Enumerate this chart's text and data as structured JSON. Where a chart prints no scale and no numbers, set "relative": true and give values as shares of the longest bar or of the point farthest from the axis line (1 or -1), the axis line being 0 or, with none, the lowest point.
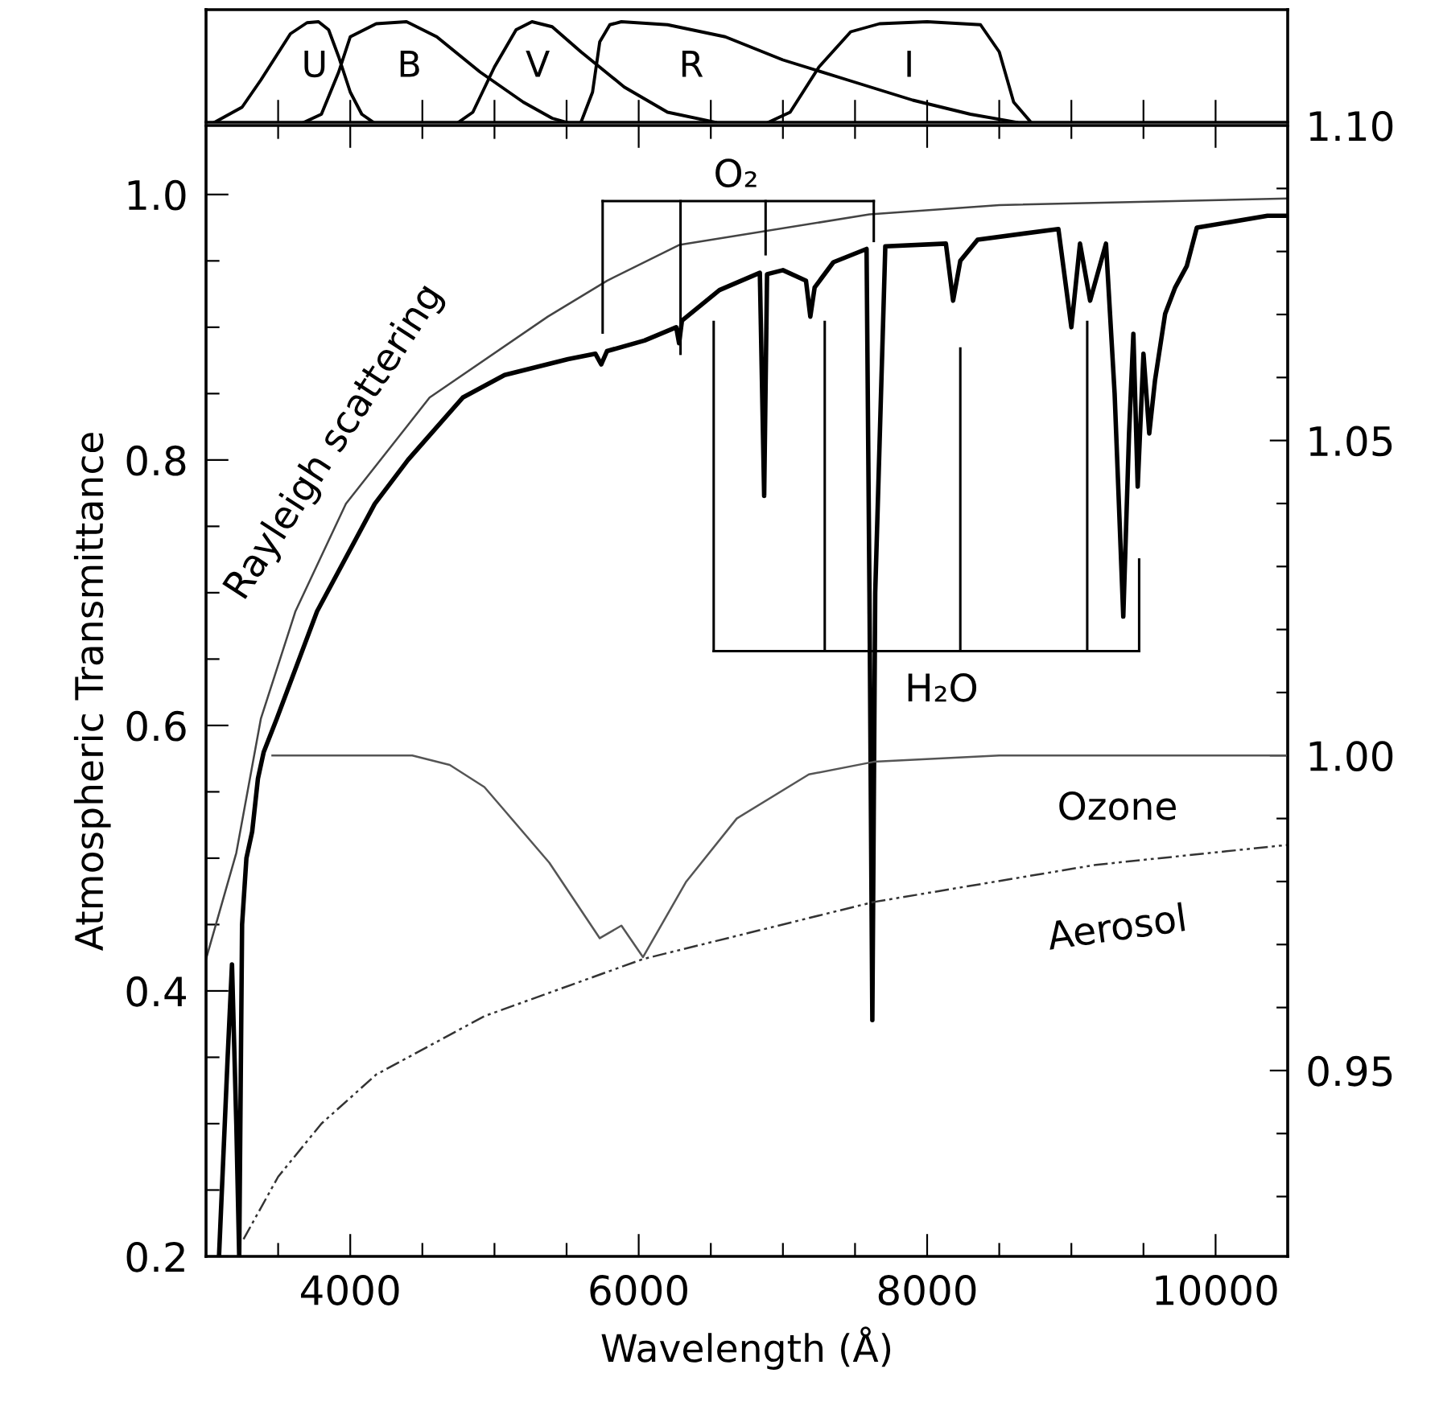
{
  "chart_data": [
    {
      "type": "line",
      "relative": true,
      "tick_labels": false,
      "xlim": [
        3000,
        10500
      ],
      "xticks": [
        {
          "value": 3500,
          "label": null
        },
        4000,
        {
          "value": 4500,
          "label": null
        },
        {
          "value": 5000,
          "label": null
        },
        {
          "value": 5500,
          "label": null
        },
        6000,
        {
          "value": 6500,
          "label": null
        },
        {
          "value": 7000,
          "label": null
        },
        {
          "value": 7500,
          "label": null
        },
        8000,
        {
          "value": 8500,
          "label": null
        },
        {
          "value": 9000,
          "label": null
        },
        {
          "value": 9500,
          "label": null
        },
        10000
      ],
      "series": [
        {
          "name": "U",
          "color": "#000000",
          "x": [
            3060,
            3250,
            3380,
            3585,
            3700,
            3780,
            3850,
            3920,
            4000,
            4080,
            4160
          ],
          "values": [
            0,
            0.15,
            0.42,
            0.88,
            0.99,
            1.0,
            0.92,
            0.65,
            0.3,
            0.08,
            0
          ]
        },
        {
          "name": "B",
          "color": "#000000",
          "x": [
            3680,
            3800,
            3920,
            4000,
            4180,
            4390,
            4600,
            4900,
            5200,
            5400,
            5500
          ],
          "values": [
            0,
            0.08,
            0.5,
            0.85,
            0.98,
            1.0,
            0.85,
            0.5,
            0.2,
            0.04,
            0
          ]
        },
        {
          "name": "V",
          "color": "#000000",
          "x": [
            4750,
            4850,
            5000,
            5150,
            5260,
            5400,
            5600,
            5900,
            6200,
            6530
          ],
          "values": [
            0,
            0.1,
            0.55,
            0.92,
            1.0,
            0.95,
            0.7,
            0.35,
            0.1,
            0
          ]
        },
        {
          "name": "R",
          "color": "#000000",
          "x": [
            5600,
            5680,
            5730,
            5800,
            5880,
            6200,
            6600,
            7000,
            7450,
            7900,
            8300,
            8620
          ],
          "values": [
            0,
            0.3,
            0.8,
            0.97,
            1.0,
            0.97,
            0.85,
            0.62,
            0.42,
            0.22,
            0.08,
            0
          ]
        },
        {
          "name": "I",
          "color": "#000000",
          "x": [
            6900,
            7050,
            7250,
            7470,
            7670,
            8000,
            8370,
            8500,
            8600,
            8720
          ],
          "values": [
            0,
            0.1,
            0.55,
            0.9,
            0.98,
            1.0,
            0.97,
            0.7,
            0.2,
            0
          ]
        }
      ]
    },
    {
      "type": "line",
      "xlabel": "Wavelength (Å)",
      "ylabel": "Atmospheric Transmittance",
      "legend": false,
      "grid": false,
      "xlim": [
        3000,
        10500
      ],
      "ylim": [
        0.2,
        1.052
      ],
      "y2lim": [
        0.9205,
        1.1
      ],
      "xticks": [
        {
          "value": 3500,
          "label": null
        },
        4000,
        {
          "value": 4500,
          "label": null
        },
        {
          "value": 5000,
          "label": null
        },
        {
          "value": 5500,
          "label": null
        },
        6000,
        {
          "value": 6500,
          "label": null
        },
        {
          "value": 7000,
          "label": null
        },
        {
          "value": 7500,
          "label": null
        },
        8000,
        {
          "value": 8500,
          "label": null
        },
        {
          "value": 9000,
          "label": null
        },
        {
          "value": 9500,
          "label": null
        },
        10000
      ],
      "yticks": [
        0.2,
        {
          "value": 0.25,
          "label": null
        },
        {
          "value": 0.3,
          "label": null
        },
        {
          "value": 0.35,
          "label": null
        },
        0.4,
        {
          "value": 0.45,
          "label": null
        },
        {
          "value": 0.5,
          "label": null
        },
        {
          "value": 0.55,
          "label": null
        },
        0.6,
        {
          "value": 0.65,
          "label": null
        },
        {
          "value": 0.7,
          "label": null
        },
        {
          "value": 0.75,
          "label": null
        },
        0.8,
        {
          "value": 0.85,
          "label": null
        },
        {
          "value": 0.9,
          "label": null
        },
        {
          "value": 0.95,
          "label": null
        },
        {
          "value": 1.0,
          "label": "1.0"
        }
      ],
      "y2ticks": [
        {
          "value": 0.93,
          "label": null
        },
        {
          "value": 0.94,
          "label": null
        },
        0.95,
        {
          "value": 0.96,
          "label": null
        },
        {
          "value": 0.97,
          "label": null
        },
        {
          "value": 0.98,
          "label": null
        },
        {
          "value": 0.99,
          "label": null
        },
        {
          "value": 1.0,
          "label": "1.00"
        },
        {
          "value": 1.01,
          "label": null
        },
        {
          "value": 1.02,
          "label": null
        },
        {
          "value": 1.03,
          "label": null
        },
        {
          "value": 1.04,
          "label": null
        },
        1.05,
        {
          "value": 1.06,
          "label": null
        },
        {
          "value": 1.07,
          "label": null
        },
        {
          "value": 1.08,
          "label": null
        },
        {
          "value": 1.09,
          "label": null
        },
        {
          "value": 1.1,
          "label": "1.10"
        }
      ],
      "series": [
        {
          "color": "#000000",
          "line_style": "solid",
          "x": [
            3090,
            3150,
            3180,
            3210,
            3230,
            3250,
            3280,
            3320,
            3360,
            3400,
            3490,
            3770,
            4170,
            4400,
            4780,
            5070,
            5510,
            5700,
            5740,
            5780,
            6040,
            6260,
            6280,
            6300,
            6560,
            6840,
            6870,
            6890,
            7000,
            7160,
            7190,
            7220,
            7350,
            7580,
            7600,
            7620,
            7640,
            7710,
            8130,
            8180,
            8230,
            8350,
            8910,
            9000,
            9060,
            9130,
            9240,
            9300,
            9360,
            9400,
            9430,
            9460,
            9500,
            9540,
            9580,
            9650,
            9720,
            9800,
            9870,
            10360,
            10500
          ],
          "values": [
            0.2,
            0.35,
            0.42,
            0.3,
            0.2,
            0.45,
            0.5,
            0.52,
            0.56,
            0.58,
            0.605,
            0.686,
            0.767,
            0.8,
            0.847,
            0.864,
            0.876,
            0.88,
            0.872,
            0.882,
            0.89,
            0.9,
            0.888,
            0.905,
            0.928,
            0.941,
            0.773,
            0.94,
            0.943,
            0.935,
            0.908,
            0.93,
            0.949,
            0.959,
            0.7,
            0.378,
            0.7,
            0.961,
            0.963,
            0.92,
            0.95,
            0.966,
            0.974,
            0.9,
            0.963,
            0.92,
            0.963,
            0.85,
            0.682,
            0.82,
            0.895,
            0.78,
            0.88,
            0.82,
            0.86,
            0.91,
            0.93,
            0.946,
            0.975,
            0.984,
            0.984
          ]
        },
        {
          "name": "Rayleigh scattering",
          "color": "#444444",
          "line_style": "solid",
          "x": [
            3000,
            3210,
            3380,
            3620,
            3970,
            4550,
            5370,
            5780,
            6280,
            7600,
            8500,
            10500
          ],
          "values": [
            0.424,
            0.504,
            0.605,
            0.686,
            0.767,
            0.847,
            0.908,
            0.935,
            0.962,
            0.985,
            0.992,
            0.997
          ]
        },
        {
          "name": "Ozone",
          "color": "#555555",
          "line_style": "solid",
          "axis": "y2",
          "x": [
            3460,
            4430,
            4690,
            4930,
            5080,
            5380,
            5730,
            5880,
            6030,
            6330,
            6680,
            7180,
            7630,
            8500,
            10500
          ],
          "values": [
            1.0,
            1.0,
            0.9985,
            0.995,
            0.991,
            0.983,
            0.971,
            0.973,
            0.968,
            0.98,
            0.99,
            0.997,
            0.999,
            1.0,
            1.0
          ]
        },
        {
          "name": "Aerosol",
          "color": "#333333",
          "line_style": "dashdot",
          "x": [
            3260,
            3500,
            3800,
            4180,
            4930,
            6030,
            7630,
            9170,
            10500
          ],
          "values": [
            0.213,
            0.26,
            0.3,
            0.337,
            0.381,
            0.424,
            0.467,
            0.495,
            0.51
          ]
        }
      ],
      "annotations": [
        "O₂",
        "H₂O"
      ]
    }
  ]
}
